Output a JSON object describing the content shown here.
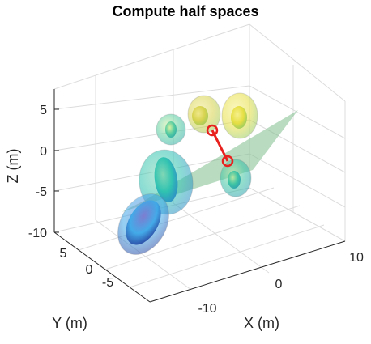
{
  "chart_data": {
    "type": "3d-surface",
    "title": "Compute half spaces",
    "xlabel": "X (m)",
    "ylabel": "Y (m)",
    "zlabel": "Z (m)",
    "xticks": [
      "-10",
      "0",
      "10"
    ],
    "yticks": [
      "-5",
      "0",
      "5"
    ],
    "zticks": [
      "-10",
      "-5",
      "0",
      "5"
    ],
    "xlim": [
      -15,
      12
    ],
    "ylim": [
      -8,
      8
    ],
    "zlim": [
      -10,
      8
    ],
    "grid": true,
    "colormap": [
      "#4a3fb8",
      "#2f8fe0",
      "#34c8a8",
      "#a9d86a",
      "#f2e640"
    ],
    "ellipsoids": [
      {
        "id": "e1",
        "colors": [
          "#7a7acf",
          "#3fa9e8",
          "#233b9a"
        ]
      },
      {
        "id": "e2",
        "colors": [
          "#7ed6b4",
          "#2cc2b0",
          "#2a86c9"
        ]
      },
      {
        "id": "e3",
        "colors": [
          "#d8f0a0",
          "#54cc9e",
          "#2aa8a6"
        ]
      },
      {
        "id": "e4",
        "colors": [
          "#f0e88a",
          "#d7d24a",
          "#9cc957"
        ]
      },
      {
        "id": "e5",
        "colors": [
          "#f6f08c",
          "#e6de3e",
          "#8cc862"
        ]
      },
      {
        "id": "e6",
        "colors": [
          "#b8e6a0",
          "#38c2a2",
          "#2a9cb0"
        ]
      }
    ],
    "half_space_plane": {
      "color": "#7fbf8e",
      "opacity": 0.55
    },
    "segment": {
      "color": "#e8211e"
    }
  }
}
